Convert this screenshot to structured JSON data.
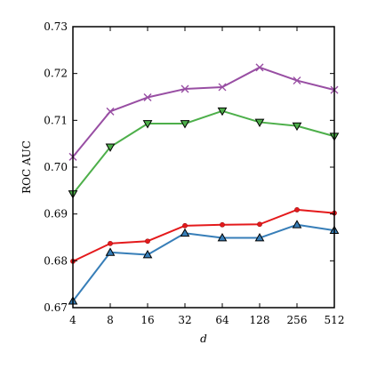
{
  "chart_data": {
    "type": "line",
    "xlabel": "d",
    "ylabel": "ROC AUC",
    "categories": [
      "4",
      "8",
      "16",
      "32",
      "64",
      "128",
      "256",
      "512"
    ],
    "ylim": [
      0.67,
      0.73
    ],
    "yticks": [
      "0.67",
      "0.68",
      "0.69",
      "0.70",
      "0.71",
      "0.72",
      "0.73"
    ],
    "grid": false,
    "series": [
      {
        "color": "#984ea3",
        "marker": "x",
        "values": [
          0.7022,
          0.7119,
          0.7149,
          0.7167,
          0.7171,
          0.7213,
          0.7185,
          0.7165
        ]
      },
      {
        "color": "#4daf4a",
        "marker": "triangle-down",
        "values": [
          0.6943,
          0.7043,
          0.7093,
          0.7093,
          0.712,
          0.7096,
          0.7088,
          0.7066
        ]
      },
      {
        "color": "#e41a1c",
        "marker": "dot",
        "values": [
          0.6799,
          0.6837,
          0.6842,
          0.6875,
          0.6877,
          0.6878,
          0.6909,
          0.6902
        ]
      },
      {
        "color": "#377eb8",
        "marker": "triangle-up",
        "values": [
          0.6714,
          0.6818,
          0.6813,
          0.6859,
          0.6849,
          0.6849,
          0.6877,
          0.6865
        ]
      }
    ]
  }
}
